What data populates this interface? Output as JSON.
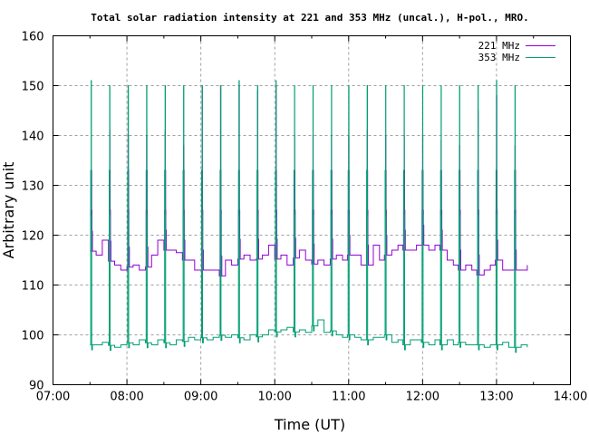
{
  "chart_data": {
    "type": "line",
    "title": "Total solar radiation intensity at 221 and 353 MHz (uncal.), H-pol., MRO.",
    "xlabel": "Time (UT)",
    "ylabel": "Arbitrary unit",
    "xlim": [
      "07:00",
      "14:00"
    ],
    "ylim": [
      90,
      160
    ],
    "grid": true,
    "legend_placement": "top-right",
    "x_tick_labels": [
      "07:00",
      "08:00",
      "09:00",
      "10:00",
      "11:00",
      "12:00",
      "13:00",
      "14:00"
    ],
    "y_tick_labels": [
      "90",
      "100",
      "110",
      "120",
      "130",
      "140",
      "150",
      "160"
    ],
    "sample_interval_min": 5,
    "sample_start": "07:30",
    "series": [
      {
        "name": "221 MHz",
        "color": "#9400d3",
        "baseline": [
          117,
          116,
          119,
          115,
          114,
          113,
          113.5,
          114,
          113,
          113,
          116,
          119,
          117,
          117,
          116.5,
          115,
          115,
          113,
          113,
          113,
          113,
          111,
          115,
          114,
          115,
          116,
          115,
          115,
          116,
          118,
          115,
          116,
          114,
          115,
          117,
          115,
          114,
          115,
          114,
          115,
          116,
          115,
          116,
          116,
          114,
          114,
          118,
          115,
          116,
          117,
          118,
          117,
          117,
          118,
          118,
          117,
          118,
          117,
          115,
          114,
          113,
          114,
          113,
          112,
          113,
          114,
          115,
          113,
          113,
          113,
          113,
          114
        ],
        "spike_peaks": [
          133,
          141,
          140,
          140,
          141,
          138,
          150,
          150,
          150,
          149,
          150,
          140,
          140,
          140,
          140,
          141,
          140,
          140,
          140,
          139,
          138,
          145,
          148,
          138
        ],
        "spike_plateau": [
          125,
          133
        ]
      },
      {
        "name": "353 MHz",
        "color": "#009e73",
        "baseline": [
          98,
          98,
          98.5,
          98,
          97.5,
          98,
          98.5,
          98,
          99,
          98.5,
          98,
          99,
          98.5,
          98,
          99,
          98.5,
          99.5,
          99,
          99.5,
          99,
          99.5,
          100,
          99.5,
          100,
          99.5,
          99,
          100,
          99.5,
          100,
          101,
          100.5,
          101,
          101.5,
          100.5,
          101,
          100.5,
          101.5,
          103,
          100.5,
          101,
          100,
          99.5,
          100,
          99.5,
          99,
          99,
          99.5,
          99.5,
          100,
          98.5,
          99,
          98,
          99,
          99,
          98.5,
          98,
          99,
          98,
          99,
          98,
          98.5,
          98,
          98,
          98,
          97.5,
          98,
          98,
          98.5,
          97.5,
          97.5,
          98,
          97.5
        ],
        "spike_peaks": [
          151,
          150,
          150,
          150,
          150,
          150,
          150,
          150,
          151,
          150,
          151,
          150,
          150,
          150,
          150,
          150,
          150,
          150,
          150,
          150,
          150,
          150,
          151,
          150
        ],
        "spike_plateau": [
          124,
          133
        ]
      }
    ],
    "spike_times": [
      "07:31",
      "07:46",
      "08:01",
      "08:16",
      "08:31",
      "08:46",
      "09:01",
      "09:16",
      "09:31",
      "09:46",
      "10:01",
      "10:16",
      "10:31",
      "10:46",
      "11:00",
      "11:15",
      "11:30",
      "11:45",
      "12:00",
      "12:15",
      "12:30",
      "12:45",
      "13:00",
      "13:15"
    ]
  }
}
